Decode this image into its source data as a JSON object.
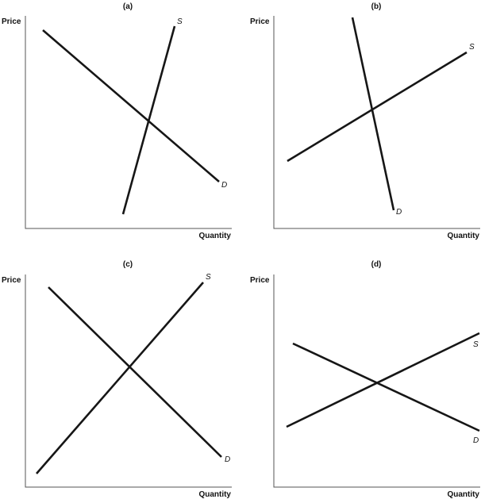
{
  "colors": {
    "curve": "#161616",
    "axis": "#555555",
    "text": "#111111"
  },
  "panels": [
    {
      "title": "(a)",
      "y_axis_label": "Price",
      "x_axis_label": "Quantity",
      "supply_label": "S",
      "demand_label": "D"
    },
    {
      "title": "(b)",
      "y_axis_label": "Price",
      "x_axis_label": "Quantity",
      "supply_label": "S",
      "demand_label": "D"
    },
    {
      "title": "(c)",
      "y_axis_label": "Price",
      "x_axis_label": "Quantity",
      "supply_label": "S",
      "demand_label": "D"
    },
    {
      "title": "(d)",
      "y_axis_label": "Price",
      "x_axis_label": "Quantity",
      "supply_label": "S",
      "demand_label": "D"
    }
  ]
}
